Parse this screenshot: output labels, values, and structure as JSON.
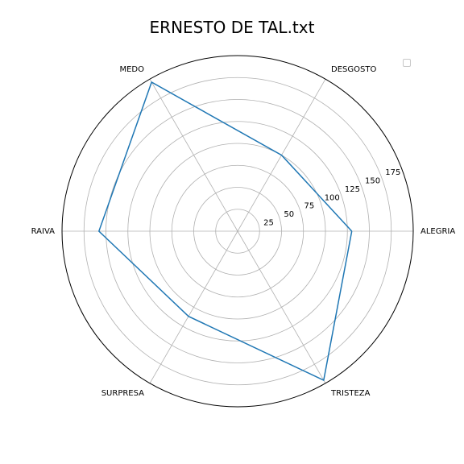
{
  "chart_data": {
    "type": "radar",
    "title": "ERNESTO DE TAL.txt",
    "categories": [
      "ALEGRIA",
      "DESGOSTO",
      "MEDO",
      "RAIVA",
      "SURPRESA",
      "TRISTEZA"
    ],
    "series": [
      {
        "values": [
          130,
          100,
          196,
          158,
          112,
          196
        ],
        "color": "#1f77b4"
      }
    ],
    "r_ticks": [
      25,
      50,
      75,
      100,
      125,
      150,
      175
    ],
    "r_range": [
      0,
      200
    ],
    "grid": true,
    "legend": "top-right (empty)"
  }
}
